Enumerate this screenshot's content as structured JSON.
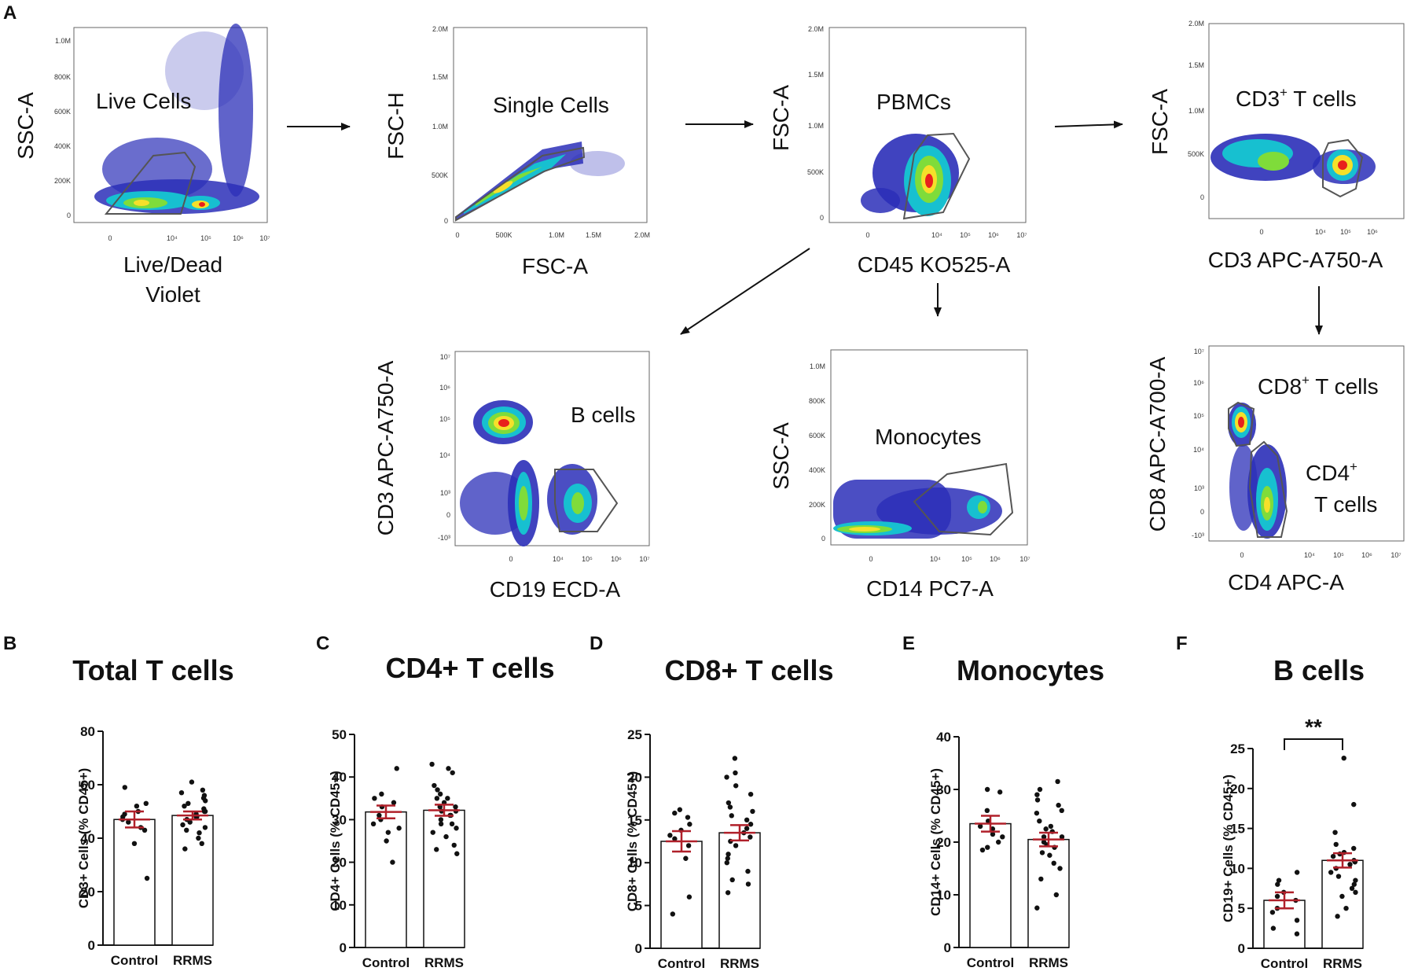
{
  "figure": {
    "panel_letters": [
      "A",
      "B",
      "C",
      "D",
      "E",
      "F"
    ]
  },
  "colors": {
    "density_low": "#2b2fb8",
    "density_mid": "#17c0d0",
    "density_high_1": "#7fdc3a",
    "density_high_2": "#f5e02a",
    "density_peak": "#e8201c",
    "gate_line": "#555555",
    "error_bar": "#b0202a",
    "dot": "#111111"
  },
  "gating": {
    "plots": [
      {
        "id": "live-cells",
        "x_label": "Live/Dead Violet",
        "y_label": "SSC-A",
        "gate_label": "Live Cells",
        "x_ticks": [
          "0",
          "10⁴",
          "10⁵",
          "10⁶",
          "10⁷"
        ],
        "y_ticks": [
          "0",
          "200K",
          "400K",
          "600K",
          "800K",
          "1.0M"
        ]
      },
      {
        "id": "single-cells",
        "x_label": "FSC-A",
        "y_label": "FSC-H",
        "gate_label": "Single Cells",
        "x_ticks": [
          "0",
          "500K",
          "1.0M",
          "1.5M",
          "2.0M"
        ],
        "y_ticks": [
          "0",
          "500K",
          "1.0M",
          "1.5M",
          "2.0M"
        ]
      },
      {
        "id": "pbmcs",
        "x_label": "CD45 KO525-A",
        "y_label": "FSC-A",
        "gate_label": "PBMCs",
        "x_ticks": [
          "0",
          "10⁴",
          "10⁵",
          "10⁶",
          "10⁷"
        ],
        "y_ticks": [
          "0",
          "500K",
          "1.0M",
          "1.5M",
          "2.0M"
        ]
      },
      {
        "id": "cd3-t-cells",
        "x_label": "CD3 APC-A750-A",
        "y_label": "FSC-A",
        "gate_label_main": "CD3",
        "gate_label_sup": "+",
        "gate_label_rest": " T cells",
        "x_ticks": [
          "0",
          "10⁴",
          "10⁵",
          "10⁶"
        ],
        "y_ticks": [
          "0",
          "500K",
          "1.0M",
          "1.5M",
          "2.0M"
        ]
      },
      {
        "id": "b-cells",
        "x_label": "CD19 ECD-A",
        "y_label": "CD3 APC-A750-A",
        "gate_label": "B cells",
        "x_ticks": [
          "0",
          "10⁴",
          "10⁵",
          "10⁶",
          "10⁷"
        ],
        "y_ticks": [
          "-10³",
          "0",
          "10³",
          "10⁴",
          "10⁵",
          "10⁶",
          "10⁷"
        ]
      },
      {
        "id": "monocytes",
        "x_label": "CD14 PC7-A",
        "y_label": "SSC-A",
        "gate_label": "Monocytes",
        "x_ticks": [
          "0",
          "10⁴",
          "10⁵",
          "10⁶",
          "10⁷"
        ],
        "y_ticks": [
          "0",
          "200K",
          "400K",
          "600K",
          "800K",
          "1.0M"
        ]
      },
      {
        "id": "cd4-cd8",
        "x_label": "CD4 APC-A",
        "y_label": "CD8 APC-A700-A",
        "gate_label_cd8_main": "CD8",
        "gate_label_cd8_sup": "+",
        "gate_label_cd8_rest": " T cells",
        "gate_label_cd4_main": "CD4",
        "gate_label_cd4_sup": "+",
        "gate_label_cd4_line2": "T cells",
        "x_ticks": [
          "0",
          "10⁴",
          "10⁵",
          "10⁶",
          "10⁷"
        ],
        "y_ticks": [
          "-10³",
          "0",
          "10³",
          "10⁴",
          "10⁵",
          "10⁶",
          "10⁷"
        ]
      }
    ]
  },
  "chart_data": [
    {
      "type": "bar",
      "panel": "B",
      "title": "Total T cells",
      "ylabel": "CD3+ Cells (% CD45+)",
      "categories": [
        "Control",
        "RRMS"
      ],
      "ylim": [
        0,
        80
      ],
      "yticks": [
        0,
        20,
        40,
        60,
        80
      ],
      "means": [
        47,
        48.5
      ],
      "sem": [
        3,
        1.5
      ],
      "points": [
        [
          59,
          53,
          52,
          50,
          49,
          48,
          47,
          46,
          44,
          43,
          38,
          25
        ],
        [
          61,
          58,
          57,
          56,
          55,
          54,
          53,
          52,
          51,
          50,
          50,
          49,
          48,
          48,
          47,
          46,
          45,
          44,
          43,
          42,
          40,
          38,
          36
        ]
      ],
      "significance": ""
    },
    {
      "type": "bar",
      "panel": "C",
      "title": "CD4+ T cells",
      "ylabel": "CD4+ Cells (% CD45+)",
      "categories": [
        "Control",
        "RRMS"
      ],
      "ylim": [
        0,
        50
      ],
      "yticks": [
        0,
        10,
        20,
        30,
        40,
        50
      ],
      "means": [
        31.8,
        32.2
      ],
      "sem": [
        1.5,
        1.3
      ],
      "points": [
        [
          42,
          36,
          35,
          34,
          33,
          31,
          30,
          29,
          28,
          27,
          25,
          20
        ],
        [
          43,
          42,
          41,
          38,
          37,
          36,
          35,
          35,
          34,
          33,
          33,
          32,
          32,
          31,
          31,
          30,
          29,
          29,
          28,
          27,
          26,
          24,
          23,
          22
        ]
      ],
      "significance": ""
    },
    {
      "type": "bar",
      "panel": "D",
      "title": "CD8+ T cells",
      "ylabel": "CD8+ Cells (% CD45+)",
      "categories": [
        "Control",
        "RRMS"
      ],
      "ylim": [
        0,
        25
      ],
      "yticks": [
        0,
        5,
        10,
        15,
        20,
        25
      ],
      "means": [
        12.5,
        13.5
      ],
      "sem": [
        1.2,
        0.9
      ],
      "points": [
        [
          16.2,
          15.8,
          15.3,
          14.5,
          13.8,
          13.2,
          12.8,
          12,
          10.5,
          6,
          4
        ],
        [
          22.2,
          20.5,
          20,
          19,
          18,
          17,
          16.5,
          16,
          15.5,
          15,
          14.5,
          14,
          13.5,
          13,
          12.5,
          12,
          11,
          10.5,
          10,
          9,
          8,
          7.5,
          6.5
        ]
      ],
      "significance": ""
    },
    {
      "type": "bar",
      "panel": "E",
      "title": "Monocytes",
      "ylabel": "CD14+ Cells (% CD45+)",
      "categories": [
        "Control",
        "RRMS"
      ],
      "ylim": [
        0,
        40
      ],
      "yticks": [
        0,
        10,
        20,
        30,
        40
      ],
      "means": [
        23.5,
        20.5
      ],
      "sem": [
        1.5,
        1.3
      ],
      "points": [
        [
          30,
          29.5,
          26,
          24,
          23,
          22.5,
          21.5,
          21,
          20,
          19,
          18.5
        ],
        [
          31.5,
          30,
          29,
          28,
          27,
          26,
          25.5,
          24,
          23,
          22.5,
          22,
          21,
          21,
          20,
          19.5,
          19,
          18,
          17.5,
          16,
          15,
          13,
          10,
          7.5
        ]
      ],
      "significance": ""
    },
    {
      "type": "bar",
      "panel": "F",
      "title": "B cells",
      "ylabel": "CD19+ Cells (% CD45+)",
      "categories": [
        "Control",
        "RRMS"
      ],
      "ylim": [
        0,
        25
      ],
      "yticks": [
        0,
        5,
        10,
        15,
        20,
        25
      ],
      "means": [
        6,
        11
      ],
      "sem": [
        1,
        0.9
      ],
      "points": [
        [
          9.5,
          8.5,
          8,
          7,
          6.5,
          6,
          5,
          4.5,
          3.5,
          2.5,
          1.8
        ],
        [
          23.8,
          18,
          14.5,
          13,
          12.5,
          12,
          11.8,
          11.5,
          11,
          10.8,
          10.5,
          10,
          9.5,
          9,
          8.5,
          8,
          7.5,
          7,
          6.5,
          5,
          4
        ]
      ],
      "significance": "**"
    }
  ]
}
